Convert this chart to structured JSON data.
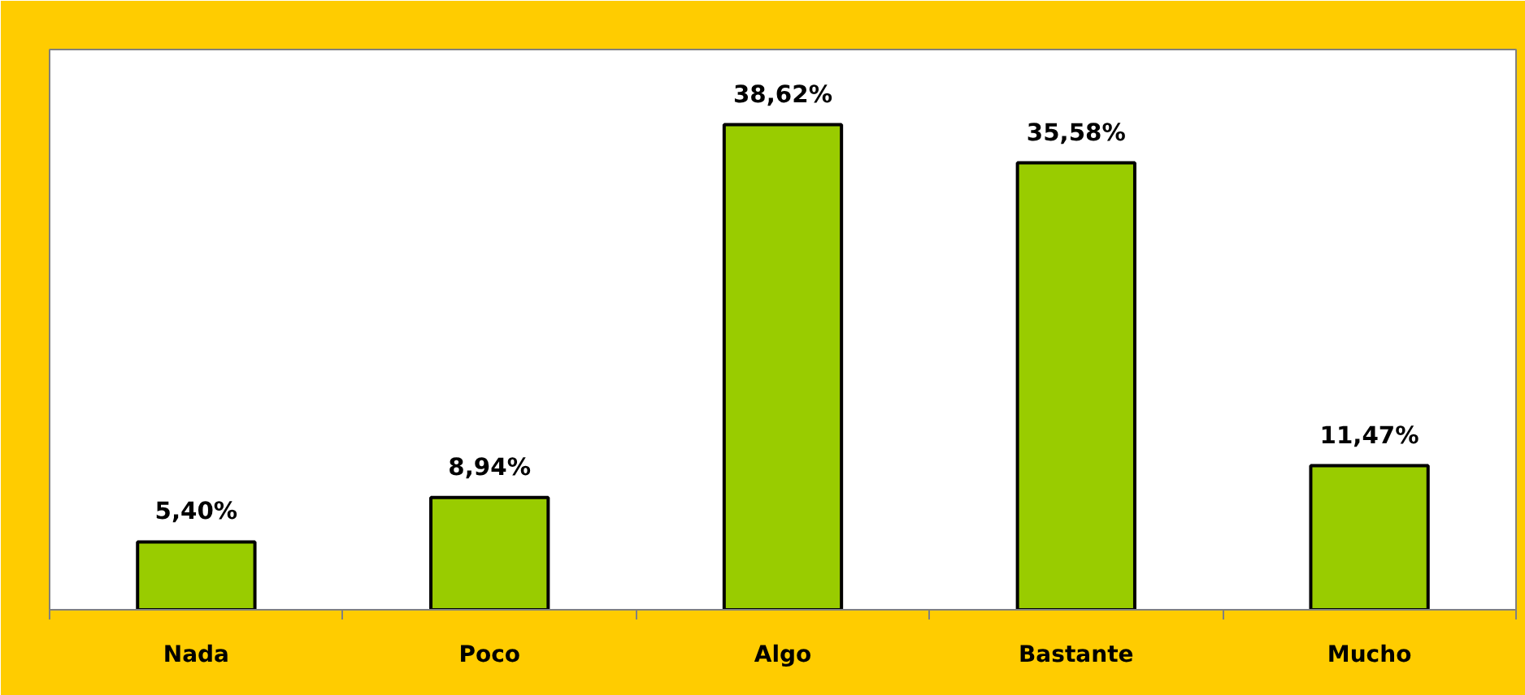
{
  "chart_data": {
    "type": "bar",
    "categories": [
      "Nada",
      "Poco",
      "Algo",
      "Bastante",
      "Mucho"
    ],
    "values": [
      5.4,
      8.94,
      38.62,
      35.58,
      11.47
    ],
    "value_labels": [
      "5,40%",
      "8,94%",
      "38,62%",
      "35,58%",
      "11,47%"
    ],
    "color": "#99cc00"
  }
}
